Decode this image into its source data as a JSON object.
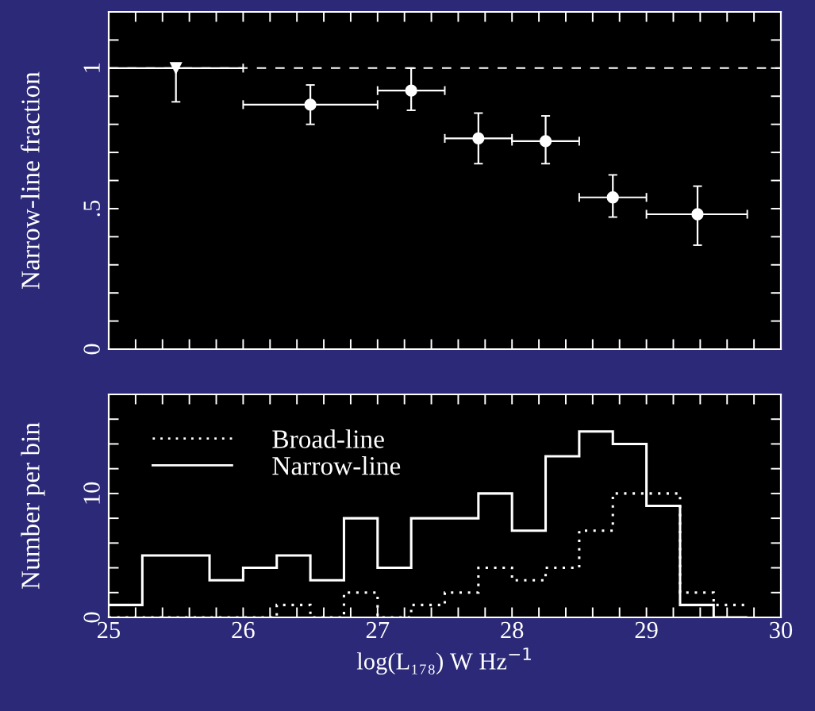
{
  "chart_data": [
    {
      "type": "scatter",
      "ylabel": "Narrow-line fraction",
      "tick_labels": "y",
      "xlim": [
        25,
        30
      ],
      "ylim": [
        0,
        1.2
      ],
      "xticks": [
        25,
        {
          "value": 25.2,
          "label": null
        },
        {
          "value": 25.4,
          "label": null
        },
        {
          "value": 25.6,
          "label": null
        },
        {
          "value": 25.8,
          "label": null
        },
        26,
        {
          "value": 26.2,
          "label": null
        },
        {
          "value": 26.4,
          "label": null
        },
        {
          "value": 26.6,
          "label": null
        },
        {
          "value": 26.8,
          "label": null
        },
        27,
        {
          "value": 27.2,
          "label": null
        },
        {
          "value": 27.4,
          "label": null
        },
        {
          "value": 27.6,
          "label": null
        },
        {
          "value": 27.8,
          "label": null
        },
        28,
        {
          "value": 28.2,
          "label": null
        },
        {
          "value": 28.4,
          "label": null
        },
        {
          "value": 28.6,
          "label": null
        },
        {
          "value": 28.8,
          "label": null
        },
        29,
        {
          "value": 29.2,
          "label": null
        },
        {
          "value": 29.4,
          "label": null
        },
        {
          "value": 29.6,
          "label": null
        },
        {
          "value": 29.8,
          "label": null
        },
        30
      ],
      "yticks": [
        0,
        {
          "value": 0.1,
          "label": null
        },
        {
          "value": 0.2,
          "label": null
        },
        {
          "value": 0.3,
          "label": null
        },
        {
          "value": 0.4,
          "label": null
        },
        {
          "value": 0.5,
          "label": ".5"
        },
        {
          "value": 0.6,
          "label": null
        },
        {
          "value": 0.7,
          "label": null
        },
        {
          "value": 0.8,
          "label": null
        },
        {
          "value": 0.9,
          "label": null
        },
        1,
        {
          "value": 1.1,
          "label": null
        },
        {
          "value": 1.2,
          "label": null
        }
      ],
      "ref_lines": [
        {
          "axis": "y",
          "value": 1,
          "color": "#ffffff",
          "line_style": "dashed"
        }
      ],
      "series": [
        {
          "color": "#ffffff",
          "marker": "triangle",
          "x": [
            25.5
          ],
          "values": [
            1.0
          ],
          "errors": [
            [
              0.88,
              1.0
            ]
          ],
          "xerrors": [
            [
              25,
              26
            ]
          ]
        },
        {
          "color": "#ffffff",
          "marker": "circle",
          "x": [
            26.5,
            27.25,
            27.75,
            28.25,
            28.75,
            29.38
          ],
          "values": [
            0.87,
            0.92,
            0.75,
            0.74,
            0.54,
            0.48
          ],
          "errors": [
            [
              0.8,
              0.94
            ],
            [
              0.85,
              1.0
            ],
            [
              0.66,
              0.84
            ],
            [
              0.66,
              0.83
            ],
            [
              0.47,
              0.62
            ],
            [
              0.37,
              0.58
            ]
          ],
          "xerrors": [
            [
              26,
              27
            ],
            [
              27,
              27.5
            ],
            [
              27.5,
              28
            ],
            [
              28,
              28.5
            ],
            [
              28.5,
              29
            ],
            [
              29,
              29.75
            ]
          ]
        }
      ]
    },
    {
      "type": "histogram",
      "xlabel": "log(L₁₇₈) W Hz$^{−1}$",
      "ylabel": "Number per bin",
      "legend": "top left",
      "xlim": [
        25,
        30
      ],
      "ylim": [
        0,
        18
      ],
      "xticks": [
        25,
        {
          "value": 25.2,
          "label": null
        },
        {
          "value": 25.4,
          "label": null
        },
        {
          "value": 25.6,
          "label": null
        },
        {
          "value": 25.8,
          "label": null
        },
        26,
        {
          "value": 26.2,
          "label": null
        },
        {
          "value": 26.4,
          "label": null
        },
        {
          "value": 26.6,
          "label": null
        },
        {
          "value": 26.8,
          "label": null
        },
        27,
        {
          "value": 27.2,
          "label": null
        },
        {
          "value": 27.4,
          "label": null
        },
        {
          "value": 27.6,
          "label": null
        },
        {
          "value": 27.8,
          "label": null
        },
        28,
        {
          "value": 28.2,
          "label": null
        },
        {
          "value": 28.4,
          "label": null
        },
        {
          "value": 28.6,
          "label": null
        },
        {
          "value": 28.8,
          "label": null
        },
        29,
        {
          "value": 29.2,
          "label": null
        },
        {
          "value": 29.4,
          "label": null
        },
        {
          "value": 29.6,
          "label": null
        },
        {
          "value": 29.8,
          "label": null
        },
        30
      ],
      "yticks": [
        0,
        {
          "value": 2,
          "label": null
        },
        {
          "value": 4,
          "label": null
        },
        {
          "value": 6,
          "label": null
        },
        {
          "value": 8,
          "label": null
        },
        10,
        {
          "value": 12,
          "label": null
        },
        {
          "value": 14,
          "label": null
        },
        {
          "value": 16,
          "label": null
        },
        {
          "value": 18,
          "label": null
        }
      ],
      "bins": [
        25,
        25.25,
        25.5,
        25.75,
        26,
        26.25,
        26.5,
        26.75,
        27,
        27.25,
        27.5,
        27.75,
        28,
        28.25,
        28.5,
        28.75,
        29,
        29.25,
        29.5,
        29.75
      ],
      "series": [
        {
          "name": "Broad-line",
          "color": "#ffffff",
          "line_style": "dotted",
          "values": [
            0,
            0,
            0,
            0,
            0,
            1,
            0,
            2,
            0,
            1,
            2,
            4,
            3,
            4,
            7,
            10,
            10,
            2,
            1
          ]
        },
        {
          "name": "Narrow-line",
          "color": "#ffffff",
          "line_style": "solid",
          "values": [
            1,
            5,
            5,
            3,
            4,
            5,
            3,
            8,
            4,
            8,
            8,
            10,
            7,
            13,
            15,
            14,
            9,
            1,
            0
          ]
        }
      ]
    }
  ]
}
